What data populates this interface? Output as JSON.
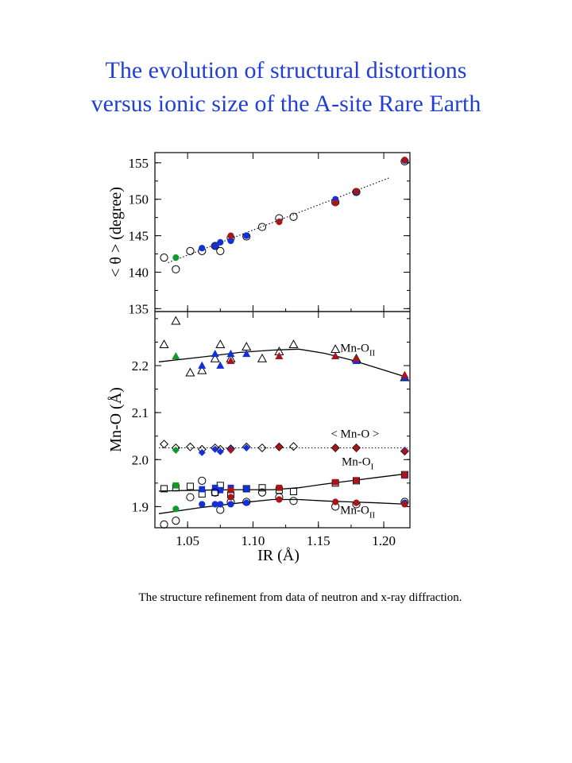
{
  "title": {
    "line1": "The evolution of structural distortions",
    "line2": "versus ionic size of the A-site Rare Earth"
  },
  "caption": "The structure refinement from data of neutron and x-ray diffraction.",
  "colors": {
    "title": "#1f3fd6",
    "blue": "#1330d8",
    "red": "#a8161d",
    "green": "#119a2a",
    "black": "#000000"
  },
  "chart_data": [
    {
      "type": "scatter",
      "panel": "top",
      "xlabel": "IR (Å)",
      "ylabel": "< θ > (degree)",
      "xlim": [
        1.025,
        1.22
      ],
      "ylim": [
        134.6,
        156.4
      ],
      "yticks": [
        135,
        140,
        145,
        150,
        155
      ],
      "ytick_labels": [
        "135",
        "140",
        "145",
        "150",
        "155"
      ],
      "series": [
        {
          "marker": "open-circle",
          "color": "#000000",
          "points": [
            [
              1.032,
              142.0
            ],
            [
              1.041,
              140.4
            ],
            [
              1.052,
              142.9
            ],
            [
              1.061,
              142.9
            ],
            [
              1.071,
              143.6
            ],
            [
              1.075,
              142.9
            ],
            [
              1.083,
              144.7
            ],
            [
              1.095,
              144.9
            ],
            [
              1.107,
              146.2
            ],
            [
              1.12,
              147.4
            ],
            [
              1.131,
              147.6
            ],
            [
              1.163,
              149.6
            ],
            [
              1.179,
              151.0
            ],
            [
              1.216,
              155.2
            ]
          ]
        },
        {
          "marker": "filled-circle",
          "color": "#1330d8",
          "points": [
            [
              1.061,
              143.3
            ],
            [
              1.071,
              143.6
            ],
            [
              1.075,
              144.1
            ],
            [
              1.083,
              144.3
            ],
            [
              1.095,
              145.0
            ],
            [
              1.163,
              150.0
            ],
            [
              1.179,
              151.0
            ],
            [
              1.216,
              155.3
            ]
          ]
        },
        {
          "marker": "filled-circle",
          "color": "#a8161d",
          "points": [
            [
              1.083,
              145.0
            ],
            [
              1.12,
              146.9
            ],
            [
              1.163,
              149.5
            ],
            [
              1.179,
              151.1
            ],
            [
              1.216,
              155.4
            ]
          ]
        },
        {
          "marker": "filled-circle",
          "color": "#119a2a",
          "points": [
            [
              1.041,
              142.0
            ]
          ]
        }
      ],
      "fit_line": {
        "style": "dotted",
        "points": [
          [
            1.035,
            141.3
          ],
          [
            1.205,
            153.0
          ]
        ]
      }
    },
    {
      "type": "scatter",
      "panel": "bottom",
      "xlabel": "IR (Å)",
      "ylabel": "Mn-O (Å)",
      "xlim": [
        1.025,
        1.22
      ],
      "ylim": [
        1.855,
        2.315
      ],
      "yticks": [
        1.9,
        2.0,
        2.1,
        2.2
      ],
      "ytick_labels": [
        "1.9",
        "2.0",
        "2.1",
        "2.2"
      ],
      "xticks": [
        1.05,
        1.1,
        1.15,
        1.2
      ],
      "xtick_labels": [
        "1.05",
        "1.10",
        "1.15",
        "1.20"
      ],
      "annotations": [
        {
          "text": "Mn-O",
          "sub": "II",
          "at": [
            1.18,
            2.23
          ]
        },
        {
          "text": "< Mn-O >",
          "sub": "",
          "at": [
            1.178,
            2.047
          ]
        },
        {
          "text": "Mn-O",
          "sub": "I",
          "at": [
            1.18,
            1.988
          ]
        },
        {
          "text": "Mn-O",
          "sub": "II",
          "at": [
            1.18,
            1.885
          ]
        }
      ],
      "series": [
        {
          "marker": "open-triangle",
          "color": "#000000",
          "points": [
            [
              1.032,
              2.245
            ],
            [
              1.041,
              2.295
            ],
            [
              1.052,
              2.185
            ],
            [
              1.061,
              2.19
            ],
            [
              1.071,
              2.215
            ],
            [
              1.075,
              2.245
            ],
            [
              1.083,
              2.215
            ],
            [
              1.095,
              2.24
            ],
            [
              1.107,
              2.215
            ],
            [
              1.12,
              2.23
            ],
            [
              1.131,
              2.245
            ],
            [
              1.163,
              2.235
            ],
            [
              1.179,
              2.215
            ],
            [
              1.216,
              2.175
            ]
          ]
        },
        {
          "marker": "filled-triangle",
          "color": "#1330d8",
          "points": [
            [
              1.061,
              2.2
            ],
            [
              1.071,
              2.225
            ],
            [
              1.075,
              2.2
            ],
            [
              1.083,
              2.225
            ],
            [
              1.095,
              2.225
            ],
            [
              1.163,
              2.22
            ],
            [
              1.179,
              2.21
            ],
            [
              1.216,
              2.175
            ]
          ]
        },
        {
          "marker": "filled-triangle",
          "color": "#a8161d",
          "points": [
            [
              1.083,
              2.21
            ],
            [
              1.12,
              2.22
            ],
            [
              1.163,
              2.22
            ],
            [
              1.179,
              2.215
            ],
            [
              1.216,
              2.18
            ]
          ]
        },
        {
          "marker": "filled-triangle",
          "color": "#119a2a",
          "points": [
            [
              1.041,
              2.22
            ]
          ]
        },
        {
          "marker": "open-diamond",
          "color": "#000000",
          "points": [
            [
              1.032,
              2.033
            ],
            [
              1.041,
              2.025
            ],
            [
              1.052,
              2.027
            ],
            [
              1.061,
              2.022
            ],
            [
              1.071,
              2.025
            ],
            [
              1.075,
              2.022
            ],
            [
              1.083,
              2.023
            ],
            [
              1.095,
              2.027
            ],
            [
              1.107,
              2.025
            ],
            [
              1.12,
              2.027
            ],
            [
              1.131,
              2.028
            ],
            [
              1.163,
              2.025
            ],
            [
              1.179,
              2.025
            ],
            [
              1.216,
              2.018
            ]
          ]
        },
        {
          "marker": "filled-diamond",
          "color": "#1330d8",
          "points": [
            [
              1.061,
              2.015
            ],
            [
              1.071,
              2.022
            ],
            [
              1.075,
              2.017
            ],
            [
              1.083,
              2.022
            ],
            [
              1.095,
              2.025
            ],
            [
              1.216,
              2.02
            ]
          ]
        },
        {
          "marker": "filled-diamond",
          "color": "#a8161d",
          "points": [
            [
              1.083,
              2.02
            ],
            [
              1.12,
              2.027
            ],
            [
              1.163,
              2.025
            ],
            [
              1.179,
              2.025
            ],
            [
              1.216,
              2.018
            ]
          ]
        },
        {
          "marker": "filled-diamond",
          "color": "#119a2a",
          "points": [
            [
              1.041,
              2.02
            ]
          ]
        },
        {
          "marker": "open-square",
          "color": "#000000",
          "points": [
            [
              1.032,
              1.938
            ],
            [
              1.041,
              1.94
            ],
            [
              1.052,
              1.943
            ],
            [
              1.061,
              1.927
            ],
            [
              1.071,
              1.93
            ],
            [
              1.075,
              1.945
            ],
            [
              1.083,
              1.925
            ],
            [
              1.095,
              1.938
            ],
            [
              1.107,
              1.94
            ],
            [
              1.12,
              1.935
            ],
            [
              1.131,
              1.932
            ],
            [
              1.163,
              1.95
            ],
            [
              1.179,
              1.955
            ],
            [
              1.216,
              1.968
            ]
          ]
        },
        {
          "marker": "filled-square",
          "color": "#1330d8",
          "points": [
            [
              1.061,
              1.937
            ],
            [
              1.071,
              1.94
            ],
            [
              1.075,
              1.935
            ],
            [
              1.083,
              1.94
            ],
            [
              1.095,
              1.938
            ],
            [
              1.216,
              1.966
            ]
          ]
        },
        {
          "marker": "filled-square",
          "color": "#a8161d",
          "points": [
            [
              1.083,
              1.935
            ],
            [
              1.12,
              1.94
            ],
            [
              1.163,
              1.952
            ],
            [
              1.179,
              1.956
            ],
            [
              1.216,
              1.967
            ]
          ]
        },
        {
          "marker": "filled-square",
          "color": "#119a2a",
          "points": [
            [
              1.041,
              1.945
            ]
          ]
        },
        {
          "marker": "open-circle",
          "color": "#000000",
          "points": [
            [
              1.032,
              1.862
            ],
            [
              1.041,
              1.87
            ],
            [
              1.052,
              1.92
            ],
            [
              1.061,
              1.955
            ],
            [
              1.071,
              1.93
            ],
            [
              1.075,
              1.893
            ],
            [
              1.083,
              1.91
            ],
            [
              1.095,
              1.91
            ],
            [
              1.107,
              1.93
            ],
            [
              1.12,
              1.92
            ],
            [
              1.131,
              1.912
            ],
            [
              1.163,
              1.9
            ],
            [
              1.179,
              1.905
            ],
            [
              1.216,
              1.91
            ]
          ]
        },
        {
          "marker": "filled-circle",
          "color": "#1330d8",
          "points": [
            [
              1.061,
              1.905
            ],
            [
              1.071,
              1.905
            ],
            [
              1.075,
              1.905
            ],
            [
              1.083,
              1.905
            ],
            [
              1.095,
              1.908
            ],
            [
              1.216,
              1.908
            ]
          ]
        },
        {
          "marker": "filled-circle",
          "color": "#a8161d",
          "points": [
            [
              1.083,
              1.92
            ],
            [
              1.12,
              1.915
            ],
            [
              1.163,
              1.91
            ],
            [
              1.179,
              1.908
            ],
            [
              1.216,
              1.905
            ]
          ]
        },
        {
          "marker": "filled-circle",
          "color": "#119a2a",
          "points": [
            [
              1.041,
              1.895
            ]
          ]
        }
      ],
      "fit_lines": [
        {
          "style": "solid",
          "points": [
            [
              1.028,
              2.208
            ],
            [
              1.06,
              2.218
            ],
            [
              1.09,
              2.228
            ],
            [
              1.115,
              2.233
            ],
            [
              1.135,
              2.235
            ],
            [
              1.155,
              2.226
            ],
            [
              1.175,
              2.212
            ],
            [
              1.195,
              2.195
            ],
            [
              1.218,
              2.175
            ]
          ]
        },
        {
          "style": "dotted",
          "points": [
            [
              1.028,
              2.025
            ],
            [
              1.218,
              2.025
            ]
          ]
        },
        {
          "style": "solid",
          "points": [
            [
              1.028,
              1.933
            ],
            [
              1.06,
              1.935
            ],
            [
              1.09,
              1.936
            ],
            [
              1.115,
              1.936
            ],
            [
              1.135,
              1.94
            ],
            [
              1.155,
              1.948
            ],
            [
              1.175,
              1.955
            ],
            [
              1.195,
              1.962
            ],
            [
              1.218,
              1.97
            ]
          ]
        },
        {
          "style": "solid",
          "points": [
            [
              1.028,
              1.885
            ],
            [
              1.06,
              1.898
            ],
            [
              1.09,
              1.908
            ],
            [
              1.115,
              1.915
            ],
            [
              1.135,
              1.915
            ],
            [
              1.155,
              1.912
            ],
            [
              1.175,
              1.91
            ],
            [
              1.195,
              1.908
            ],
            [
              1.218,
              1.905
            ]
          ]
        }
      ]
    }
  ]
}
